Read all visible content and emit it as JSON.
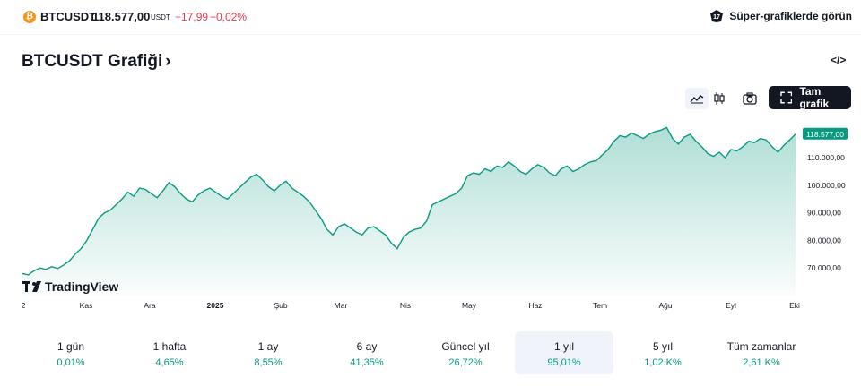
{
  "ticker": {
    "coin_glyph": "₿",
    "symbol": "BTCUSDT",
    "price": "118.577,00",
    "currency": "USDT",
    "change": "−17,99",
    "change_percent": "−0,02%",
    "super_charts_label": "Süper-grafiklerde görün"
  },
  "header": {
    "title": "BTCUSDT Grafiği",
    "chevron": "›",
    "embed_label": "</>"
  },
  "toolbar": {
    "full_chart_label": "Tam grafik"
  },
  "chart_data": {
    "type": "area",
    "color": "#089981",
    "price_label": "118.577,00",
    "y_ticks": [
      "110.000,00",
      "100.000,00",
      "90.000,00",
      "80.000,00",
      "70.000,00"
    ],
    "x_ticks": [
      "2",
      "Kas",
      "Ara",
      "2025",
      "Şub",
      "Mar",
      "Nis",
      "May",
      "Haz",
      "Tem",
      "Ağu",
      "Eyl",
      "Eki"
    ],
    "watermark": "TradingView",
    "series": [
      {
        "values": [
          68000,
          67500,
          69000,
          70000,
          69500,
          70500,
          69800,
          71000,
          72500,
          75000,
          77000,
          80000,
          84000,
          88000,
          90000,
          91000,
          93000,
          95000,
          97500,
          96000,
          99000,
          98500,
          97000,
          95500,
          98000,
          101000,
          99500,
          97000,
          95000,
          94000,
          96500,
          98000,
          99000,
          97500,
          96000,
          95000,
          97000,
          99000,
          101000,
          103000,
          104000,
          102000,
          99500,
          98000,
          100000,
          101500,
          99000,
          97500,
          96000,
          94000,
          91000,
          88000,
          84000,
          82000,
          85000,
          86000,
          84500,
          83000,
          82000,
          84500,
          85000,
          83500,
          82000,
          79000,
          77000,
          81000,
          83000,
          84000,
          84500,
          87000,
          93000,
          94000,
          95000,
          96000,
          97000,
          99000,
          103500,
          104500,
          104000,
          106000,
          105000,
          107000,
          106500,
          108500,
          107000,
          105000,
          104000,
          106000,
          107500,
          106500,
          104500,
          103500,
          106000,
          107000,
          105000,
          106000,
          107500,
          108500,
          109000,
          111000,
          113000,
          116000,
          118000,
          117500,
          119000,
          118000,
          117000,
          118500,
          119500,
          120000,
          121000,
          117000,
          115000,
          117500,
          118500,
          116000,
          114000,
          111500,
          110500,
          112000,
          110000,
          113000,
          112500,
          114000,
          116000,
          115500,
          117000,
          116500,
          114000,
          112000,
          114500,
          116500,
          118577
        ]
      }
    ]
  },
  "ranges": [
    {
      "label": "1 gün",
      "value": "0,01%"
    },
    {
      "label": "1 hafta",
      "value": "4,65%"
    },
    {
      "label": "1 ay",
      "value": "8,55%"
    },
    {
      "label": "6 ay",
      "value": "41,35%"
    },
    {
      "label": "Güncel yıl",
      "value": "26,72%"
    },
    {
      "label": "1 yıl",
      "value": "95,01%"
    },
    {
      "label": "5 yıl",
      "value": "1,02 K%"
    },
    {
      "label": "Tüm zamanlar",
      "value": "2,61 K%"
    }
  ]
}
